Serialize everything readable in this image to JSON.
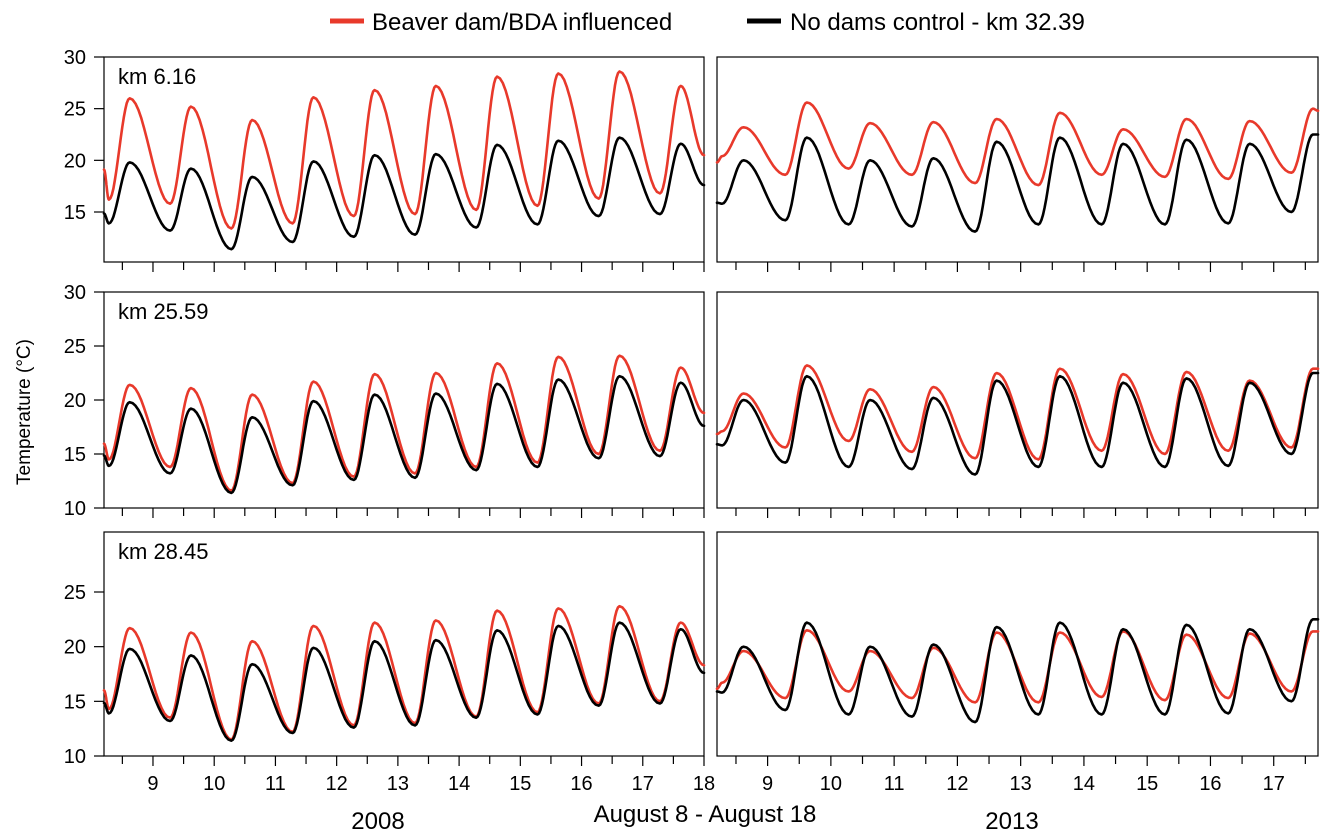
{
  "colors": {
    "influenced": "#e8392b",
    "control": "#000000"
  },
  "legend": {
    "influenced_label": "Beaver dam/BDA influenced",
    "control_label": "No dams control - km 32.39",
    "placement": "top-center"
  },
  "axes": {
    "ylabel": "Temperature (°C)",
    "xlabel_center": "August 8 - August 18",
    "year_left": "2008",
    "year_right": "2013"
  },
  "chart_data": [
    {
      "type": "line",
      "panel": "km 6.16",
      "year": "2008",
      "xlim": [
        8.2,
        18.0
      ],
      "ylim": [
        10,
        30
      ],
      "yticks": [
        15,
        20,
        25,
        30
      ],
      "xticks": [
        9,
        10,
        11,
        12,
        13,
        14,
        15,
        16,
        17,
        18
      ],
      "series": [
        {
          "name": "Beaver dam/BDA influenced",
          "min": [
            16.2,
            15.8,
            13.4,
            13.9,
            14.6,
            14.8,
            15.2,
            15.6,
            16.3,
            16.8
          ],
          "max": [
            26.0,
            25.2,
            23.9,
            26.1,
            26.8,
            27.2,
            28.1,
            28.4,
            28.6,
            27.2
          ],
          "end": 20.5
        },
        {
          "name": "No dams control - km 32.39",
          "min": [
            13.9,
            13.2,
            11.4,
            12.1,
            12.6,
            12.8,
            13.5,
            13.8,
            14.6,
            14.8
          ],
          "max": [
            19.8,
            19.2,
            18.4,
            19.9,
            20.5,
            20.6,
            21.5,
            21.9,
            22.2,
            21.6
          ],
          "end": 17.6
        }
      ]
    },
    {
      "type": "line",
      "panel": "km 6.16",
      "year": "2013",
      "xlim": [
        8.2,
        17.7
      ],
      "ylim": [
        10,
        30
      ],
      "yticks": [],
      "xticks": [
        9,
        10,
        11,
        12,
        13,
        14,
        15,
        16,
        17
      ],
      "series": [
        {
          "name": "Beaver dam/BDA influenced",
          "min": [
            20.4,
            18.6,
            19.2,
            18.6,
            17.8,
            17.6,
            18.6,
            18.4,
            18.2,
            18.8
          ],
          "max": [
            23.2,
            25.6,
            23.6,
            23.7,
            24.0,
            24.6,
            23.0,
            24.0,
            23.8,
            25.0
          ],
          "end": 24.8
        },
        {
          "name": "No dams control - km 32.39",
          "min": [
            15.8,
            14.2,
            13.8,
            13.6,
            13.1,
            13.8,
            13.8,
            13.8,
            13.9,
            15.0
          ],
          "max": [
            20.0,
            22.2,
            20.0,
            20.2,
            21.8,
            22.2,
            21.6,
            22.0,
            21.6,
            22.5
          ],
          "end": 22.5
        }
      ]
    },
    {
      "type": "line",
      "panel": "km 25.59",
      "year": "2008",
      "xlim": [
        8.2,
        18.0
      ],
      "ylim": [
        10,
        30
      ],
      "yticks": [
        10,
        15,
        20,
        25,
        30
      ],
      "xticks": [
        9,
        10,
        11,
        12,
        13,
        14,
        15,
        16,
        17,
        18
      ],
      "series": [
        {
          "name": "Beaver dam/BDA influenced",
          "min": [
            14.5,
            13.8,
            11.6,
            12.3,
            12.9,
            13.2,
            13.8,
            14.2,
            15.0,
            15.3
          ],
          "max": [
            21.4,
            21.1,
            20.5,
            21.7,
            22.4,
            22.5,
            23.4,
            24.0,
            24.1,
            23.0
          ],
          "end": 18.8
        },
        {
          "name": "No dams control - km 32.39",
          "min": [
            13.9,
            13.2,
            11.4,
            12.1,
            12.6,
            12.8,
            13.5,
            13.8,
            14.6,
            14.8
          ],
          "max": [
            19.8,
            19.2,
            18.4,
            19.9,
            20.5,
            20.6,
            21.5,
            21.9,
            22.2,
            21.6
          ],
          "end": 17.6
        }
      ]
    },
    {
      "type": "line",
      "panel": "km 25.59",
      "year": "2013",
      "xlim": [
        8.2,
        17.7
      ],
      "ylim": [
        10,
        30
      ],
      "yticks": [],
      "xticks": [
        9,
        10,
        11,
        12,
        13,
        14,
        15,
        16,
        17
      ],
      "series": [
        {
          "name": "Beaver dam/BDA influenced",
          "min": [
            17.1,
            15.6,
            16.2,
            15.2,
            14.6,
            14.5,
            15.3,
            15.0,
            15.3,
            15.6
          ],
          "max": [
            20.6,
            23.2,
            21.0,
            21.2,
            22.5,
            22.9,
            22.4,
            22.6,
            21.8,
            22.9
          ],
          "end": 22.9
        },
        {
          "name": "No dams control - km 32.39",
          "min": [
            15.8,
            14.2,
            13.8,
            13.6,
            13.1,
            13.8,
            13.8,
            13.8,
            13.9,
            15.0
          ],
          "max": [
            20.0,
            22.2,
            20.0,
            20.2,
            21.8,
            22.2,
            21.6,
            22.0,
            21.6,
            22.5
          ],
          "end": 22.5
        }
      ]
    },
    {
      "type": "line",
      "panel": "km 28.45",
      "year": "2008",
      "xlim": [
        8.2,
        18.0
      ],
      "ylim": [
        10,
        30
      ],
      "yticks": [
        10,
        15,
        20,
        25
      ],
      "xticks": [
        9,
        10,
        11,
        12,
        13,
        14,
        15,
        16,
        17,
        18
      ],
      "series": [
        {
          "name": "Beaver dam/BDA influenced",
          "min": [
            14.3,
            13.5,
            11.5,
            12.2,
            12.8,
            13.0,
            13.6,
            14.0,
            14.8,
            15.0
          ],
          "max": [
            21.7,
            21.3,
            20.5,
            21.9,
            22.2,
            22.4,
            23.3,
            23.5,
            23.7,
            22.2
          ],
          "end": 18.3
        },
        {
          "name": "No dams control - km 32.39",
          "min": [
            13.9,
            13.2,
            11.4,
            12.1,
            12.6,
            12.8,
            13.5,
            13.8,
            14.6,
            14.8
          ],
          "max": [
            19.8,
            19.2,
            18.4,
            19.9,
            20.5,
            20.6,
            21.5,
            21.9,
            22.2,
            21.6
          ],
          "end": 17.6
        }
      ]
    },
    {
      "type": "line",
      "panel": "km 28.45",
      "year": "2013",
      "xlim": [
        8.2,
        17.7
      ],
      "ylim": [
        10,
        30
      ],
      "yticks": [],
      "xticks": [
        9,
        10,
        11,
        12,
        13,
        14,
        15,
        16,
        17
      ],
      "series": [
        {
          "name": "Beaver dam/BDA influenced",
          "min": [
            16.7,
            15.3,
            15.9,
            15.3,
            14.9,
            14.9,
            15.4,
            15.1,
            15.3,
            15.9
          ],
          "max": [
            19.6,
            21.5,
            19.6,
            19.9,
            21.3,
            21.3,
            21.4,
            21.1,
            21.2,
            21.4
          ],
          "end": 21.4
        },
        {
          "name": "No dams control - km 32.39",
          "min": [
            15.8,
            14.2,
            13.8,
            13.6,
            13.1,
            13.8,
            13.8,
            13.8,
            13.9,
            15.0
          ],
          "max": [
            20.0,
            22.2,
            20.0,
            20.2,
            21.8,
            22.2,
            21.6,
            22.0,
            21.6,
            22.5
          ],
          "end": 22.5
        }
      ]
    }
  ]
}
